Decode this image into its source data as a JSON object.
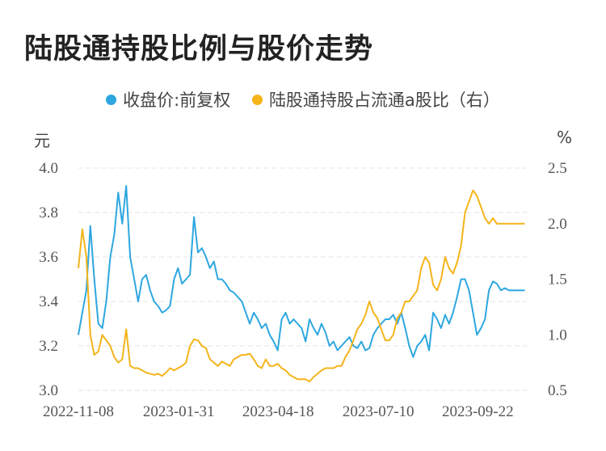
{
  "title": "陆股通持股比例与股价走势",
  "chart_data": {
    "type": "line",
    "title": "陆股通持股比例与股价走势",
    "legend_position": "top",
    "grid": true,
    "y_left_unit": "元",
    "y_right_unit": "%",
    "ylim_left": [
      3.0,
      4.0
    ],
    "ylim_right": [
      0.5,
      2.5
    ],
    "y_left_ticks": [
      "3.0",
      "3.2",
      "3.4",
      "3.6",
      "3.8",
      "4.0"
    ],
    "y_right_ticks": [
      "0.5",
      "1.0",
      "1.5",
      "2.0",
      "2.5"
    ],
    "x_ticks": [
      "2022-11-08",
      "2023-01-31",
      "2023-04-18",
      "2023-07-10",
      "2023-09-22"
    ],
    "x_range": [
      0,
      225
    ],
    "series": [
      {
        "name": "收盘价:前复权",
        "axis": "left",
        "color": "#2ea7e0",
        "x": [
          0,
          2,
          4,
          6,
          8,
          10,
          12,
          14,
          16,
          18,
          20,
          22,
          24,
          26,
          28,
          30,
          32,
          34,
          36,
          38,
          40,
          42,
          44,
          46,
          48,
          50,
          52,
          54,
          56,
          58,
          60,
          62,
          64,
          66,
          68,
          70,
          72,
          74,
          76,
          78,
          80,
          82,
          84,
          86,
          88,
          90,
          92,
          94,
          96,
          98,
          100,
          102,
          104,
          106,
          108,
          110,
          112,
          114,
          116,
          118,
          120,
          122,
          124,
          126,
          128,
          130,
          132,
          134,
          136,
          138,
          140,
          142,
          144,
          146,
          148,
          150,
          152,
          154,
          156,
          158,
          160,
          162,
          164,
          166,
          168,
          170,
          172,
          174,
          176,
          178,
          180,
          182,
          184,
          186,
          188,
          190,
          192,
          194,
          196,
          198,
          200,
          202,
          204,
          206,
          208,
          210,
          212,
          214,
          216,
          218,
          220,
          222,
          224
        ],
        "values": [
          3.25,
          3.35,
          3.45,
          3.74,
          3.5,
          3.3,
          3.28,
          3.4,
          3.6,
          3.7,
          3.89,
          3.75,
          3.92,
          3.6,
          3.5,
          3.4,
          3.5,
          3.52,
          3.45,
          3.4,
          3.38,
          3.35,
          3.36,
          3.38,
          3.5,
          3.55,
          3.48,
          3.5,
          3.52,
          3.78,
          3.62,
          3.64,
          3.6,
          3.55,
          3.58,
          3.5,
          3.5,
          3.48,
          3.45,
          3.44,
          3.42,
          3.4,
          3.35,
          3.3,
          3.35,
          3.32,
          3.28,
          3.3,
          3.25,
          3.22,
          3.18,
          3.32,
          3.35,
          3.3,
          3.32,
          3.3,
          3.28,
          3.22,
          3.32,
          3.28,
          3.25,
          3.3,
          3.26,
          3.2,
          3.22,
          3.18,
          3.2,
          3.22,
          3.24,
          3.2,
          3.19,
          3.22,
          3.18,
          3.19,
          3.25,
          3.28,
          3.3,
          3.32,
          3.32,
          3.34,
          3.3,
          3.35,
          3.28,
          3.2,
          3.15,
          3.2,
          3.22,
          3.25,
          3.18,
          3.35,
          3.32,
          3.28,
          3.34,
          3.3,
          3.35,
          3.42,
          3.5,
          3.5,
          3.45,
          3.35,
          3.25,
          3.28,
          3.32,
          3.45,
          3.49,
          3.48,
          3.45,
          3.46,
          3.45,
          3.45,
          3.45,
          3.45,
          3.45
        ]
      },
      {
        "name": "陆股通持股占流通a股比（右）",
        "axis": "right",
        "color": "#f4b41a",
        "x": [
          0,
          2,
          4,
          6,
          8,
          10,
          12,
          14,
          16,
          18,
          20,
          22,
          24,
          26,
          28,
          30,
          32,
          34,
          36,
          38,
          40,
          42,
          44,
          46,
          48,
          50,
          52,
          54,
          56,
          58,
          60,
          62,
          64,
          66,
          68,
          70,
          72,
          74,
          76,
          78,
          80,
          82,
          84,
          86,
          88,
          90,
          92,
          94,
          96,
          98,
          100,
          102,
          104,
          106,
          108,
          110,
          112,
          114,
          116,
          118,
          120,
          122,
          124,
          126,
          128,
          130,
          132,
          134,
          136,
          138,
          140,
          142,
          144,
          146,
          148,
          150,
          152,
          154,
          156,
          158,
          160,
          162,
          164,
          166,
          168,
          170,
          172,
          174,
          176,
          178,
          180,
          182,
          184,
          186,
          188,
          190,
          192,
          194,
          196,
          198,
          200,
          202,
          204,
          206,
          208,
          210,
          212,
          214,
          216,
          218,
          220,
          222,
          224
        ],
        "values": [
          1.6,
          1.95,
          1.7,
          1.0,
          0.82,
          0.85,
          1.0,
          0.95,
          0.9,
          0.8,
          0.75,
          0.78,
          1.05,
          0.72,
          0.7,
          0.7,
          0.68,
          0.66,
          0.65,
          0.64,
          0.65,
          0.63,
          0.66,
          0.7,
          0.68,
          0.7,
          0.72,
          0.75,
          0.9,
          0.96,
          0.95,
          0.9,
          0.88,
          0.78,
          0.75,
          0.72,
          0.76,
          0.74,
          0.72,
          0.78,
          0.8,
          0.82,
          0.82,
          0.83,
          0.78,
          0.72,
          0.7,
          0.78,
          0.72,
          0.72,
          0.74,
          0.7,
          0.68,
          0.64,
          0.62,
          0.6,
          0.6,
          0.6,
          0.58,
          0.62,
          0.65,
          0.68,
          0.7,
          0.7,
          0.7,
          0.72,
          0.72,
          0.8,
          0.86,
          0.95,
          1.05,
          1.1,
          1.18,
          1.3,
          1.2,
          1.15,
          1.05,
          0.95,
          0.95,
          1.0,
          1.15,
          1.2,
          1.3,
          1.3,
          1.35,
          1.4,
          1.6,
          1.7,
          1.65,
          1.45,
          1.4,
          1.5,
          1.7,
          1.6,
          1.55,
          1.65,
          1.8,
          2.1,
          2.2,
          2.3,
          2.25,
          2.15,
          2.05,
          2.0,
          2.05,
          2.0,
          2.0,
          2.0,
          2.0,
          2.0,
          2.0,
          2.0,
          2.0
        ],
        "_note": "unused"
      }
    ]
  }
}
